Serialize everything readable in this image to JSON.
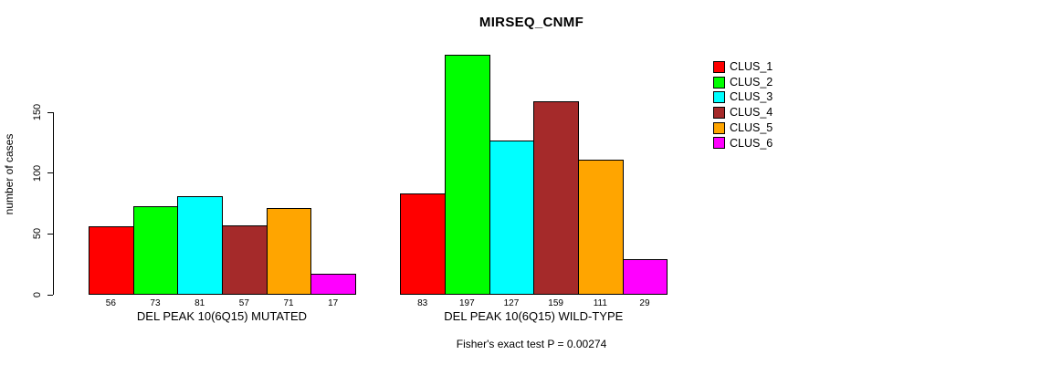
{
  "chart_data": {
    "type": "bar",
    "title": "MIRSEQ_CNMF",
    "ylabel": "number of cases",
    "xlabel": "",
    "ylim": [
      0,
      150
    ],
    "yticks": [
      0,
      50,
      100,
      150
    ],
    "grid": false,
    "legend_position": "top-right-inside",
    "bar_value_labels_shown": true,
    "groups": [
      {
        "label": "DEL PEAK 10(6Q15) MUTATED",
        "values": [
          56,
          73,
          81,
          57,
          71,
          17
        ]
      },
      {
        "label": "DEL PEAK 10(6Q15) WILD-TYPE",
        "values": [
          83,
          197,
          127,
          159,
          111,
          29
        ]
      }
    ],
    "series": [
      {
        "name": "CLUS_1",
        "color": "#FF0000",
        "values": [
          56,
          83
        ]
      },
      {
        "name": "CLUS_2",
        "color": "#00FF00",
        "values": [
          73,
          197
        ]
      },
      {
        "name": "CLUS_3",
        "color": "#00FFFF",
        "values": [
          81,
          127
        ]
      },
      {
        "name": "CLUS_4",
        "color": "#A52A2A",
        "values": [
          57,
          159
        ]
      },
      {
        "name": "CLUS_5",
        "color": "#FFA500",
        "values": [
          71,
          111
        ]
      },
      {
        "name": "CLUS_6",
        "color": "#FF00FF",
        "values": [
          17,
          29
        ]
      }
    ],
    "annotation": "Fisher's exact test P = 0.00274"
  }
}
